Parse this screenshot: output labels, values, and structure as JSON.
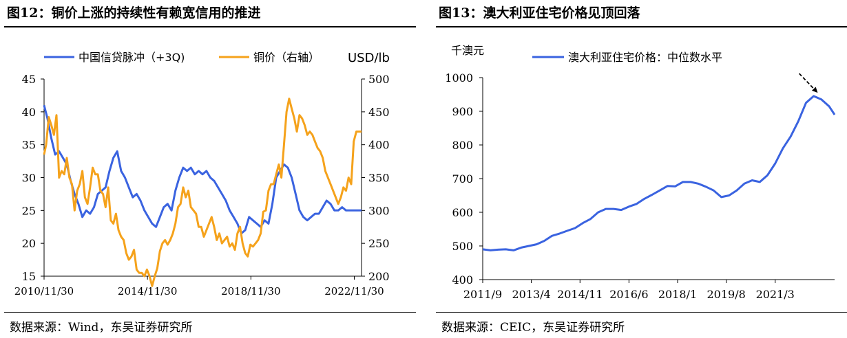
{
  "figures": [
    {
      "title": "图12：铜价上涨的持续性有赖宽信用的推进",
      "source": "数据来源：Wind，东吴证券研究所",
      "unit_label": "USD/lb"
    },
    {
      "title": "图13：澳大利亚住宅价格见顶回落",
      "source": "数据来源：CEIC，东吴证券研究所",
      "unit_label": "千澳元"
    }
  ],
  "colors": {
    "blue": "#3A63E0",
    "orange": "#F5A21B",
    "axis": "#000000"
  },
  "chart_data": [
    {
      "type": "line",
      "title": "铜价上涨的持续性有赖宽信用的推进",
      "x_tick_labels": [
        "2010/11/30",
        "2014/11/30",
        "2018/11/30",
        "2022/11/30"
      ],
      "x_tick_dates": [
        2010.92,
        2014.92,
        2018.92,
        2022.92
      ],
      "x_range": [
        2010.92,
        2023.2
      ],
      "ylim_left": [
        15,
        45
      ],
      "yticks_left": [
        15,
        20,
        25,
        30,
        35,
        40,
        45
      ],
      "ylim_right": [
        200,
        500
      ],
      "yticks_right": [
        200,
        250,
        300,
        350,
        400,
        450,
        500
      ],
      "series": [
        {
          "name": "中国信贷脉冲（+3Q)",
          "axis": "left",
          "color": "#3A63E0",
          "x": [
            2010.92,
            2011.05,
            2011.2,
            2011.35,
            2011.5,
            2011.65,
            2011.8,
            2011.95,
            2012.1,
            2012.25,
            2012.4,
            2012.55,
            2012.7,
            2012.85,
            2013.0,
            2013.15,
            2013.3,
            2013.45,
            2013.6,
            2013.75,
            2013.9,
            2014.05,
            2014.2,
            2014.35,
            2014.5,
            2014.65,
            2014.8,
            2014.95,
            2015.1,
            2015.25,
            2015.4,
            2015.55,
            2015.7,
            2015.85,
            2016.0,
            2016.15,
            2016.3,
            2016.45,
            2016.6,
            2016.75,
            2016.9,
            2017.05,
            2017.2,
            2017.35,
            2017.5,
            2017.65,
            2017.8,
            2017.95,
            2018.1,
            2018.25,
            2018.4,
            2018.55,
            2018.7,
            2018.85,
            2019.0,
            2019.15,
            2019.3,
            2019.45,
            2019.6,
            2019.75,
            2019.9,
            2020.05,
            2020.2,
            2020.35,
            2020.5,
            2020.65,
            2020.8,
            2020.95,
            2021.1,
            2021.25,
            2021.4,
            2021.55,
            2021.7,
            2021.85,
            2022.0,
            2022.15,
            2022.3,
            2022.45,
            2022.6,
            2022.75,
            2022.9,
            2023.05,
            2023.2
          ],
          "values": [
            41,
            39,
            36,
            33.5,
            34,
            33,
            32,
            29.5,
            27.5,
            26,
            24,
            25,
            24.5,
            25.5,
            27.5,
            28,
            28.5,
            31,
            33,
            34,
            31,
            30,
            28.5,
            27,
            27.5,
            26.5,
            25,
            24,
            23,
            22.5,
            24,
            25.5,
            26,
            25,
            28,
            30,
            31.5,
            31,
            31.5,
            30.5,
            31,
            30.5,
            31,
            30,
            29.5,
            28.5,
            27.5,
            26.5,
            25,
            24,
            23,
            21.5,
            22,
            24,
            23.5,
            23,
            22.5,
            23.5,
            23,
            26,
            30,
            31,
            32,
            31.5,
            30,
            27.5,
            25,
            24,
            23.5,
            24,
            24.5,
            24.5,
            25.5,
            26.5,
            26,
            25,
            25,
            25.5,
            25,
            25,
            25,
            25,
            25
          ]
        },
        {
          "name": "铜价（右轴）",
          "axis": "right",
          "color": "#F5A21B",
          "x": [
            2010.92,
            2011.0,
            2011.1,
            2011.2,
            2011.3,
            2011.4,
            2011.5,
            2011.6,
            2011.7,
            2011.8,
            2011.9,
            2012.0,
            2012.1,
            2012.2,
            2012.3,
            2012.4,
            2012.5,
            2012.6,
            2012.7,
            2012.8,
            2012.9,
            2013.0,
            2013.1,
            2013.2,
            2013.3,
            2013.4,
            2013.5,
            2013.6,
            2013.7,
            2013.8,
            2013.9,
            2014.0,
            2014.1,
            2014.2,
            2014.3,
            2014.4,
            2014.5,
            2014.6,
            2014.7,
            2014.8,
            2014.9,
            2015.0,
            2015.1,
            2015.2,
            2015.3,
            2015.4,
            2015.5,
            2015.6,
            2015.7,
            2015.8,
            2015.9,
            2016.0,
            2016.1,
            2016.2,
            2016.3,
            2016.4,
            2016.5,
            2016.6,
            2016.7,
            2016.8,
            2016.9,
            2017.0,
            2017.1,
            2017.2,
            2017.3,
            2017.4,
            2017.5,
            2017.6,
            2017.7,
            2017.8,
            2017.9,
            2018.0,
            2018.1,
            2018.2,
            2018.3,
            2018.4,
            2018.5,
            2018.6,
            2018.7,
            2018.8,
            2018.9,
            2019.0,
            2019.1,
            2019.2,
            2019.3,
            2019.4,
            2019.5,
            2019.6,
            2019.7,
            2019.8,
            2019.9,
            2020.0,
            2020.1,
            2020.2,
            2020.3,
            2020.4,
            2020.5,
            2020.6,
            2020.7,
            2020.8,
            2020.9,
            2021.0,
            2021.1,
            2021.2,
            2021.3,
            2021.4,
            2021.5,
            2021.6,
            2021.7,
            2021.8,
            2021.9,
            2022.0,
            2022.1,
            2022.2,
            2022.3,
            2022.4,
            2022.5,
            2022.6,
            2022.7,
            2022.8,
            2022.9,
            2023.0,
            2023.1,
            2023.2
          ],
          "values": [
            385,
            400,
            442,
            430,
            415,
            445,
            350,
            360,
            355,
            380,
            350,
            340,
            300,
            330,
            340,
            360,
            320,
            310,
            335,
            365,
            355,
            355,
            330,
            325,
            305,
            335,
            285,
            280,
            295,
            270,
            260,
            255,
            235,
            225,
            230,
            240,
            210,
            205,
            205,
            200,
            210,
            200,
            185,
            200,
            212,
            238,
            250,
            255,
            248,
            255,
            265,
            280,
            305,
            310,
            335,
            320,
            330,
            305,
            300,
            295,
            275,
            275,
            260,
            270,
            280,
            290,
            275,
            255,
            265,
            250,
            255,
            260,
            245,
            250,
            240,
            265,
            275,
            250,
            235,
            230,
            248,
            245,
            250,
            255,
            265,
            298,
            300,
            330,
            340,
            340,
            355,
            370,
            350,
            400,
            450,
            470,
            455,
            440,
            420,
            445,
            440,
            430,
            415,
            420,
            415,
            405,
            395,
            390,
            380,
            360,
            350,
            340,
            330,
            320,
            310,
            320,
            335,
            330,
            350,
            340,
            405,
            420,
            420,
            420
          ]
        }
      ]
    },
    {
      "type": "line",
      "title": "澳大利亚住宅价格见顶回落",
      "x_tick_labels": [
        "2011/9",
        "2013/4",
        "2014/11",
        "2016/6",
        "2018/1",
        "2019/8",
        "2021/3"
      ],
      "x_tick_dates": [
        2011.67,
        2013.25,
        2014.83,
        2016.42,
        2018.0,
        2019.58,
        2021.17
      ],
      "x_range": [
        2011.67,
        2023.1
      ],
      "ylim": [
        400,
        1000
      ],
      "yticks": [
        400,
        500,
        600,
        700,
        800,
        900,
        1000
      ],
      "series": [
        {
          "name": "澳大利亚住宅价格：中位数水平",
          "color": "#3A63E0",
          "x": [
            2011.67,
            2011.92,
            2012.17,
            2012.42,
            2012.67,
            2012.92,
            2013.17,
            2013.42,
            2013.67,
            2013.92,
            2014.17,
            2014.42,
            2014.67,
            2014.92,
            2015.17,
            2015.42,
            2015.67,
            2015.92,
            2016.17,
            2016.42,
            2016.67,
            2016.92,
            2017.17,
            2017.42,
            2017.67,
            2017.92,
            2018.17,
            2018.42,
            2018.67,
            2018.92,
            2019.17,
            2019.42,
            2019.67,
            2019.92,
            2020.17,
            2020.42,
            2020.67,
            2020.92,
            2021.17,
            2021.42,
            2021.67,
            2021.92,
            2022.17,
            2022.42,
            2022.67,
            2022.92,
            2023.1
          ],
          "values": [
            490,
            487,
            489,
            490,
            487,
            495,
            500,
            505,
            515,
            530,
            537,
            545,
            553,
            568,
            580,
            600,
            610,
            610,
            607,
            617,
            625,
            640,
            652,
            665,
            678,
            677,
            690,
            690,
            685,
            676,
            665,
            645,
            650,
            665,
            685,
            695,
            690,
            710,
            745,
            790,
            825,
            870,
            925,
            945,
            935,
            915,
            890
          ]
        }
      ],
      "annotation": "dashed arrow indicating decline from peak"
    }
  ]
}
